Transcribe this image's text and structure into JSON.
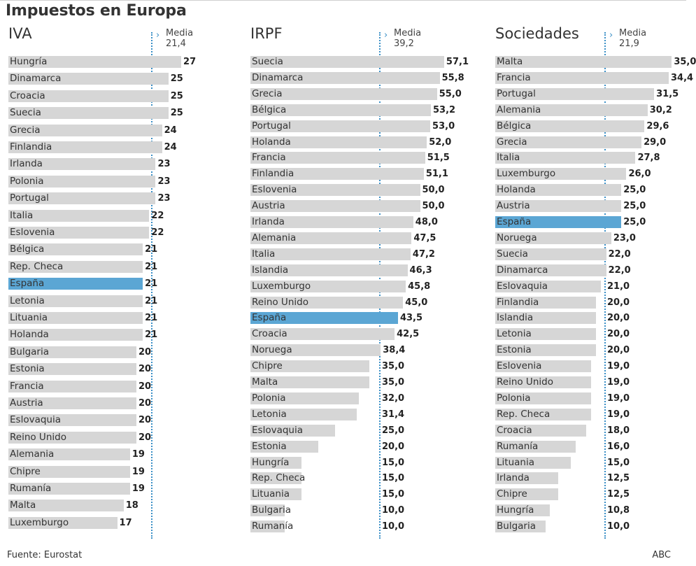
{
  "title": "Impuestos en Europa",
  "footer": {
    "source": "Fuente: Eurostat",
    "brand": "ABC"
  },
  "highlight_color": "#5ba6d4",
  "bar_color": "#d6d6d6",
  "media_label": "Media",
  "chart_data": [
    {
      "type": "bar",
      "title": "IVA",
      "media": "21,4",
      "media_value": 21.4,
      "xlim": [
        0,
        28
      ],
      "decimals": 0,
      "highlight": "España",
      "categories": [
        "Hungría",
        "Dinamarca",
        "Croacia",
        "Suecia",
        "Grecia",
        "Finlandia",
        "Irlanda",
        "Polonia",
        "Portugal",
        "Italia",
        "Eslovenia",
        "Bélgica",
        "Rep. Checa",
        "España",
        "Letonia",
        "Lituania",
        "Holanda",
        "Bulgaria",
        "Estonia",
        "Francia",
        "Austria",
        "Eslovaquia",
        "Reino Unido",
        "Alemania",
        "Chipre",
        "Rumanía",
        "Malta",
        "Luxemburgo"
      ],
      "values": [
        27,
        25,
        25,
        25,
        24,
        24,
        23,
        23,
        23,
        22,
        22,
        21,
        21,
        21,
        21,
        21,
        21,
        20,
        20,
        20,
        20,
        20,
        20,
        19,
        19,
        19,
        18,
        17
      ]
    },
    {
      "type": "bar",
      "title": "IRPF",
      "media": "39,2",
      "media_value": 39.2,
      "xlim": [
        0,
        60
      ],
      "decimals": 1,
      "highlight": "España",
      "categories": [
        "Suecia",
        "Dinamarca",
        "Grecia",
        "Bélgica",
        "Portugal",
        "Holanda",
        "Francia",
        "Finlandia",
        "Eslovenia",
        "Austria",
        "Irlanda",
        "Alemania",
        "Italia",
        "Islandia",
        "Luxemburgo",
        "Reino Unido",
        "España",
        "Croacia",
        "Noruega",
        "Chipre",
        "Malta",
        "Polonia",
        "Letonia",
        "Eslovaquia",
        "Estonia",
        "Hungría",
        "Rep. Checa",
        "Lituania",
        "Bulgaria",
        "Rumanía"
      ],
      "values": [
        57.1,
        55.8,
        55.0,
        53.2,
        53.0,
        52.0,
        51.5,
        51.1,
        50.0,
        50.0,
        48.0,
        47.5,
        47.2,
        46.3,
        45.8,
        45.0,
        43.5,
        42.5,
        38.4,
        35.0,
        35.0,
        32.0,
        31.4,
        25.0,
        20.0,
        15.0,
        15.0,
        15.0,
        10.0,
        10.0
      ]
    },
    {
      "type": "bar",
      "title": "Sociedades",
      "media": "21,9",
      "media_value": 21.9,
      "xlim": [
        0,
        36
      ],
      "decimals": 1,
      "highlight": "España",
      "categories": [
        "Malta",
        "Francia",
        "Portugal",
        "Alemania",
        "Bélgica",
        "Grecia",
        "Italia",
        "Luxemburgo",
        "Holanda",
        "Austria",
        "España",
        "Noruega",
        "Suecia",
        "Dinamarca",
        "Eslovaquia",
        "Finlandia",
        "Islandia",
        "Letonia",
        "Estonia",
        "Eslovenia",
        "Reino Unido",
        "Polonia",
        "Rep. Checa",
        "Croacia",
        "Rumanía",
        "Lituania",
        "Irlanda",
        "Chipre",
        "Hungría",
        "Bulgaria"
      ],
      "values": [
        35.0,
        34.4,
        31.5,
        30.2,
        29.6,
        29.0,
        27.8,
        26.0,
        25.0,
        25.0,
        25.0,
        23.0,
        22.0,
        22.0,
        21.0,
        20.0,
        20.0,
        20.0,
        20.0,
        19.0,
        19.0,
        19.0,
        19.0,
        18.0,
        16.0,
        15.0,
        12.5,
        12.5,
        10.8,
        10.0
      ]
    }
  ]
}
